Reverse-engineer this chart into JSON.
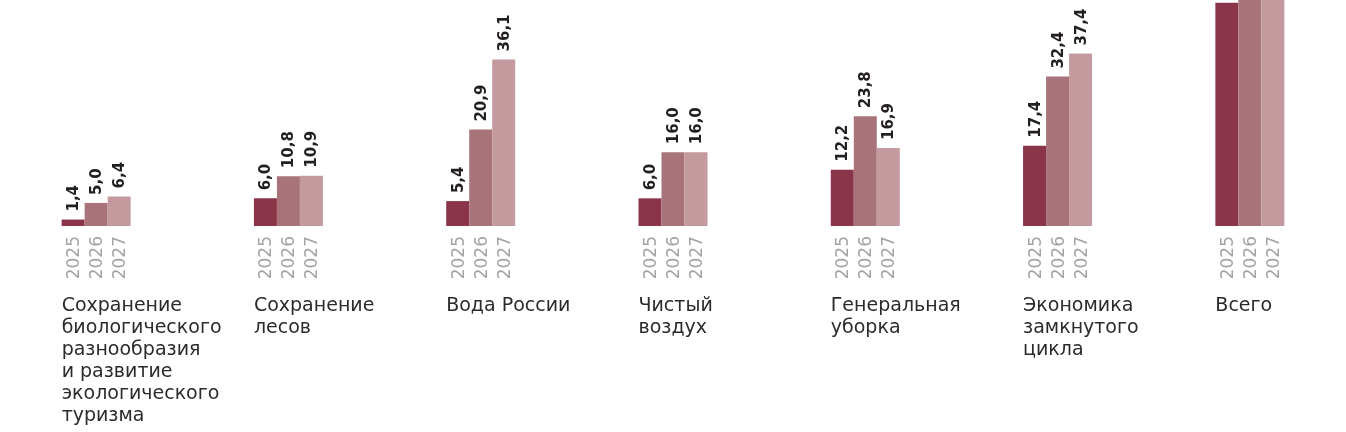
{
  "chart_data": {
    "type": "bar",
    "categories": [
      "Сохранение биологического разнообразия и развитие экологического туризма",
      "Сохранение лесов",
      "Вода России",
      "Чистый воздух",
      "Генеральная уборка",
      "Экономика замкнутого цикла",
      "Всего"
    ],
    "series": [
      {
        "name": "2025",
        "color": "#8a3549",
        "values": [
          1.4,
          6.0,
          5.4,
          6.0,
          12.2,
          17.4,
          48.4
        ],
        "value_labels": [
          "1,4",
          "6,0",
          "5,4",
          "6,0",
          "12,2",
          "17,4",
          null
        ]
      },
      {
        "name": "2026",
        "color": "#a8747a",
        "values": [
          5.0,
          10.8,
          20.9,
          16.0,
          23.8,
          32.4,
          49
        ],
        "value_labels": [
          "5,0",
          "10,8",
          "20,9",
          "16,0",
          "23,8",
          "32,4",
          null
        ]
      },
      {
        "name": "2027",
        "color": "#c39b9f",
        "values": [
          6.4,
          10.9,
          36.1,
          16.0,
          16.9,
          37.4,
          49
        ],
        "value_labels": [
          "6,4",
          "10,9",
          "36,1",
          "16,0",
          "16,9",
          "37,4",
          null
        ]
      }
    ],
    "ylim": [
      0,
      49
    ],
    "tick_labels": "x"
  }
}
